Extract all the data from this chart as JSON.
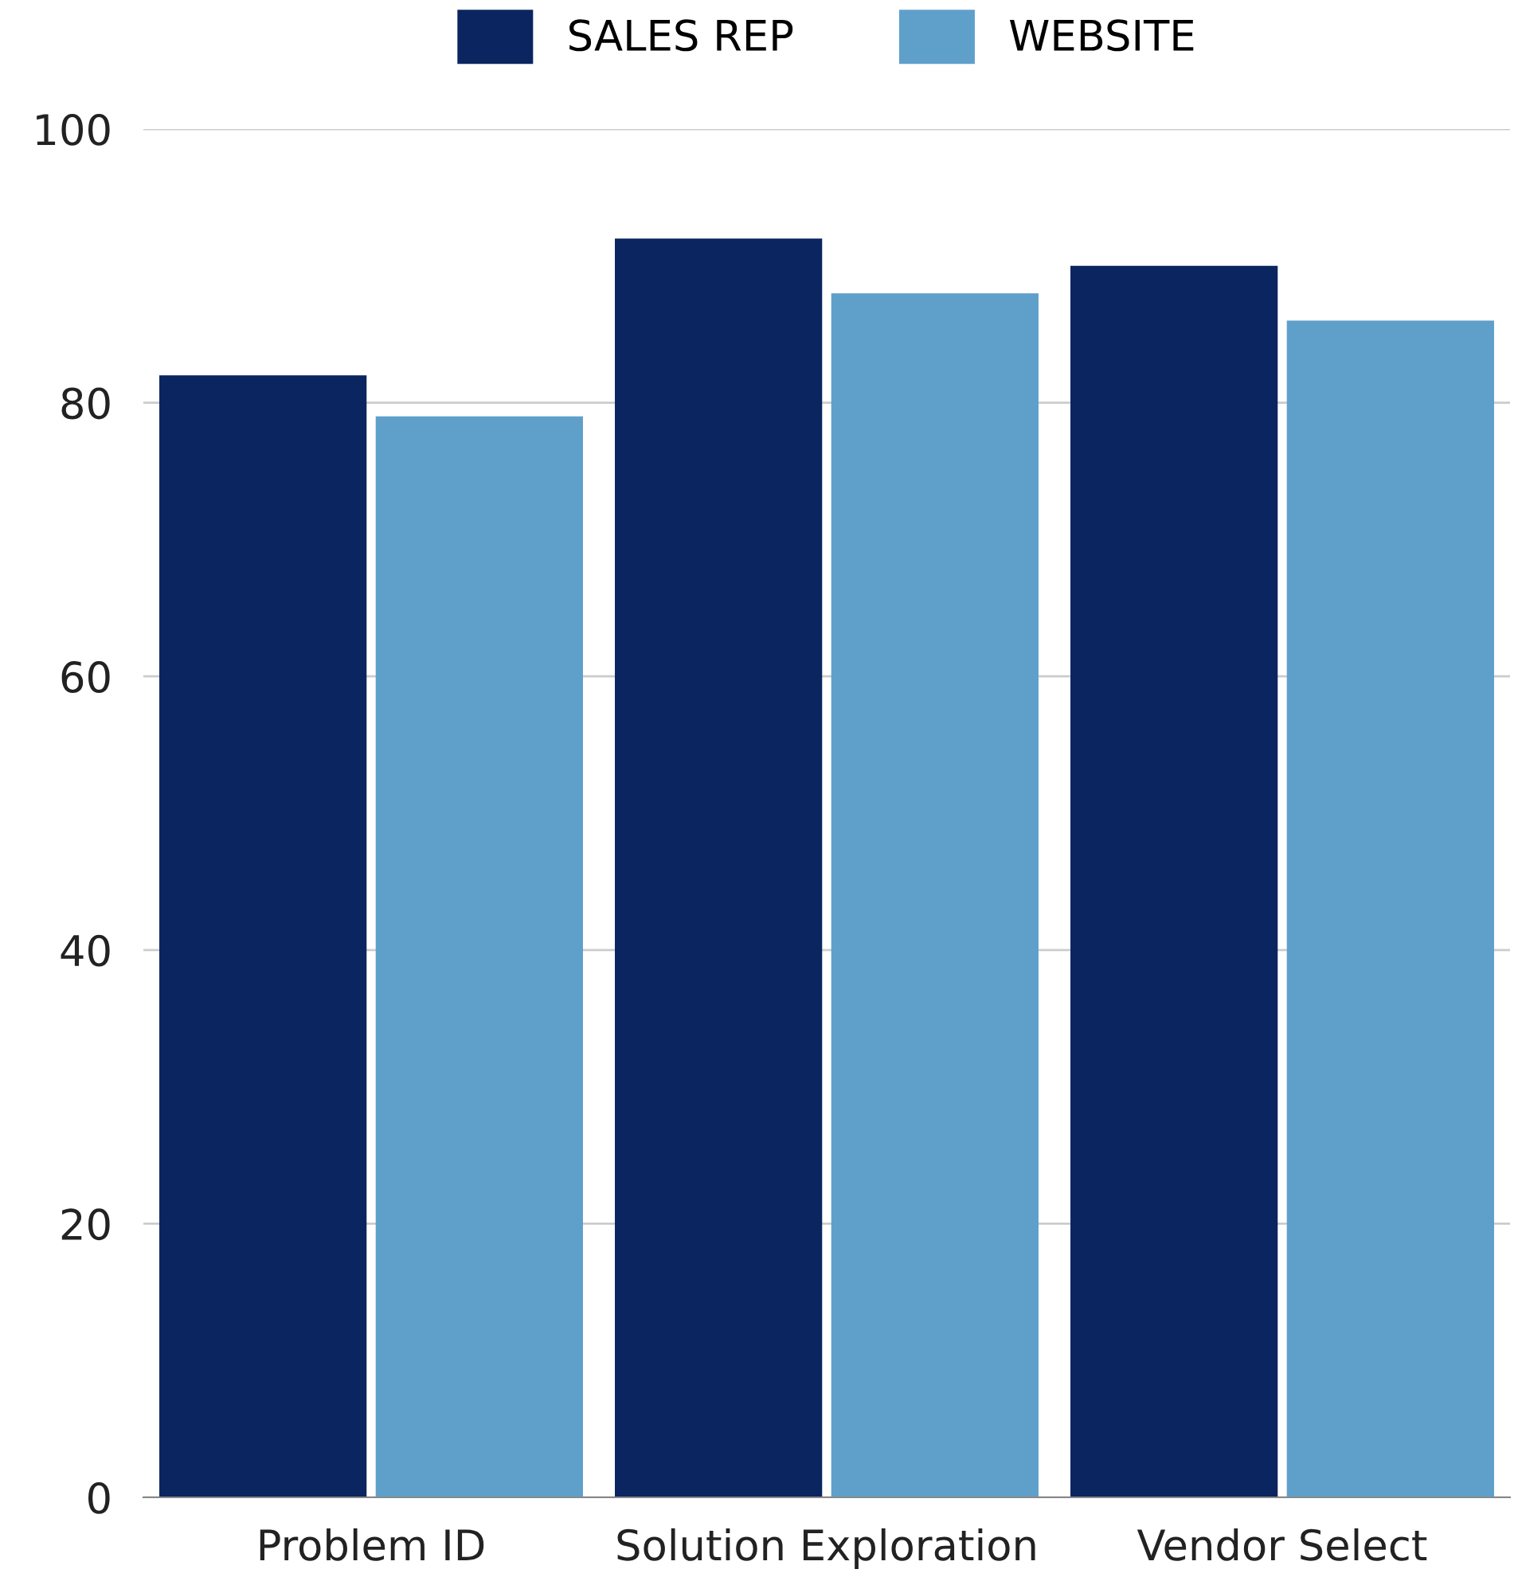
{
  "chart_data": {
    "type": "bar",
    "categories": [
      "Problem ID",
      "Solution Exploration",
      "Vendor Select"
    ],
    "series": [
      {
        "name": "SALES REP",
        "color": "#0a2560",
        "values": [
          82,
          92,
          90
        ]
      },
      {
        "name": "WEBSITE",
        "color": "#5fa0cb",
        "values": [
          79,
          88,
          86
        ]
      }
    ],
    "ylim": [
      0,
      100
    ],
    "yticks": [
      0,
      20,
      40,
      60,
      80,
      100
    ],
    "grid": "y",
    "legend": "top"
  }
}
